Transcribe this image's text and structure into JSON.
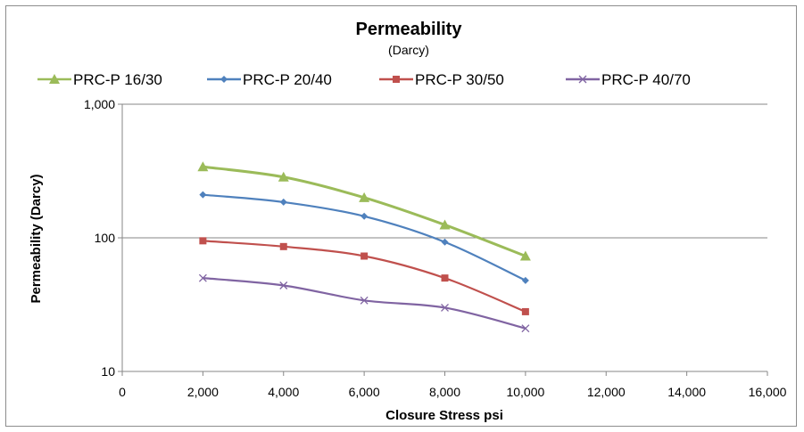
{
  "chart_data": {
    "type": "line",
    "title": "Permeability",
    "subtitle": "(Darcy)",
    "xlabel": "Closure Stress psi",
    "ylabel": "Permeability (Darcy)",
    "xlim": [
      0,
      16000
    ],
    "ylim": [
      10,
      1000
    ],
    "y_scale": "log",
    "x_ticks": [
      "0",
      "2,000",
      "4,000",
      "6,000",
      "8,000",
      "10,000",
      "12,000",
      "14,000",
      "16,000"
    ],
    "y_ticks": [
      "10",
      "100",
      "1,000"
    ],
    "grid": "horizontal",
    "legend_position": "top",
    "series": [
      {
        "name": "PRC-P 16/30",
        "color": "#9bbb59",
        "marker": "triangle",
        "x": [
          2000,
          4000,
          6000,
          8000,
          10000
        ],
        "y": [
          340,
          285,
          200,
          125,
          73
        ]
      },
      {
        "name": "PRC-P 20/40",
        "color": "#4f81bd",
        "marker": "diamond",
        "x": [
          2000,
          4000,
          6000,
          8000,
          10000
        ],
        "y": [
          210,
          185,
          145,
          93,
          48
        ]
      },
      {
        "name": "PRC-P 30/50",
        "color": "#c0504d",
        "marker": "square",
        "x": [
          2000,
          4000,
          6000,
          8000,
          10000
        ],
        "y": [
          95,
          86,
          73,
          50,
          28
        ]
      },
      {
        "name": "PRC-P 40/70",
        "color": "#8064a2",
        "marker": "x",
        "x": [
          2000,
          4000,
          6000,
          8000,
          10000
        ],
        "y": [
          50,
          44,
          34,
          30,
          21
        ]
      }
    ]
  }
}
